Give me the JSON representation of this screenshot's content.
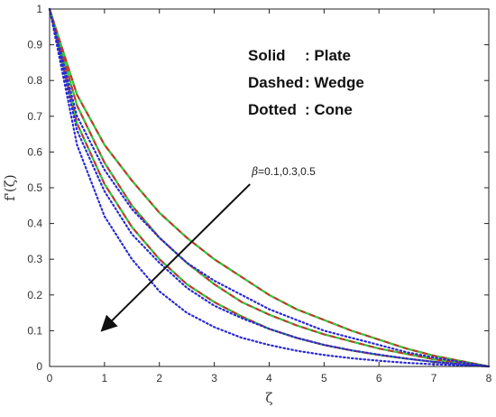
{
  "chart_data": {
    "type": "line",
    "xlabel": "ζ",
    "ylabel": "f'(ζ)",
    "xlim": [
      0,
      8
    ],
    "ylim": [
      0,
      1
    ],
    "xticks": [
      "0",
      "1",
      "2",
      "3",
      "4",
      "5",
      "6",
      "7",
      "8"
    ],
    "yticks": [
      "0",
      "0.1",
      "0.2",
      "0.3",
      "0.4",
      "0.5",
      "0.6",
      "0.7",
      "0.8",
      "0.9",
      "1"
    ],
    "grid": false,
    "legend_lines": [
      {
        "style": "Solid",
        "sep": ": ",
        "name": "Plate"
      },
      {
        "style": "Dashed",
        "sep": ": ",
        "name": "Wedge"
      },
      {
        "style": "Dotted",
        "sep": ": ",
        "name": "Cone"
      }
    ],
    "legend_position": "top-right",
    "annotation": {
      "symbol": "β",
      "text": "=0.1,0.3,0.5",
      "tail": [
        3.65,
        0.51
      ],
      "head": [
        0.95,
        0.1
      ]
    },
    "series_colors": {
      "plate": "#5a7d10",
      "wedge_dash": "#c0392b",
      "wedge_dash_alt": "#2ecc40",
      "cone": "#2a2ad4"
    },
    "series": [
      {
        "style": "solid",
        "beta": 0.1,
        "x": [
          0,
          0.5,
          1,
          1.5,
          2,
          2.5,
          3,
          3.5,
          4,
          4.5,
          5,
          5.5,
          6,
          6.5,
          7,
          7.5,
          8
        ],
        "y": [
          1,
          0.76,
          0.62,
          0.52,
          0.43,
          0.36,
          0.3,
          0.25,
          0.2,
          0.16,
          0.13,
          0.1,
          0.075,
          0.05,
          0.03,
          0.015,
          0
        ]
      },
      {
        "style": "solid",
        "beta": 0.3,
        "x": [
          0,
          0.5,
          1,
          1.5,
          2,
          2.5,
          3,
          3.5,
          4,
          4.5,
          5,
          5.5,
          6,
          6.5,
          7,
          7.5,
          8
        ],
        "y": [
          1,
          0.73,
          0.57,
          0.45,
          0.36,
          0.29,
          0.23,
          0.18,
          0.145,
          0.115,
          0.09,
          0.07,
          0.05,
          0.035,
          0.02,
          0.01,
          0
        ]
      },
      {
        "style": "solid",
        "beta": 0.5,
        "x": [
          0,
          0.5,
          1,
          1.5,
          2,
          2.5,
          3,
          3.5,
          4,
          4.5,
          5,
          5.5,
          6,
          6.5,
          7,
          7.5,
          8
        ],
        "y": [
          1,
          0.68,
          0.51,
          0.39,
          0.3,
          0.23,
          0.18,
          0.14,
          0.105,
          0.08,
          0.06,
          0.045,
          0.032,
          0.022,
          0.013,
          0.006,
          0
        ]
      },
      {
        "style": "dashed",
        "beta": 0.1,
        "x": [
          0,
          0.5,
          1,
          1.5,
          2,
          2.5,
          3,
          3.5,
          4,
          4.5,
          5,
          5.5,
          6,
          6.5,
          7,
          7.5,
          8
        ],
        "y": [
          1,
          0.76,
          0.62,
          0.52,
          0.43,
          0.36,
          0.3,
          0.25,
          0.2,
          0.16,
          0.13,
          0.1,
          0.075,
          0.05,
          0.03,
          0.015,
          0
        ]
      },
      {
        "style": "dashed",
        "beta": 0.3,
        "x": [
          0,
          0.5,
          1,
          1.5,
          2,
          2.5,
          3,
          3.5,
          4,
          4.5,
          5,
          5.5,
          6,
          6.5,
          7,
          7.5,
          8
        ],
        "y": [
          1,
          0.73,
          0.57,
          0.45,
          0.36,
          0.29,
          0.23,
          0.18,
          0.145,
          0.115,
          0.09,
          0.07,
          0.05,
          0.035,
          0.02,
          0.01,
          0
        ]
      },
      {
        "style": "dashed",
        "beta": 0.5,
        "x": [
          0,
          0.5,
          1,
          1.5,
          2,
          2.5,
          3,
          3.5,
          4,
          4.5,
          5,
          5.5,
          6,
          6.5,
          7,
          7.5,
          8
        ],
        "y": [
          1,
          0.68,
          0.51,
          0.39,
          0.3,
          0.23,
          0.18,
          0.14,
          0.105,
          0.08,
          0.06,
          0.045,
          0.032,
          0.022,
          0.013,
          0.006,
          0
        ]
      },
      {
        "style": "dotted",
        "beta": 0.1,
        "x": [
          0,
          0.5,
          1,
          1.5,
          2,
          2.5,
          3,
          3.5,
          4,
          4.5,
          5,
          5.5,
          6,
          6.5,
          7,
          7.5,
          8
        ],
        "y": [
          1,
          0.7,
          0.55,
          0.44,
          0.36,
          0.29,
          0.24,
          0.2,
          0.16,
          0.13,
          0.1,
          0.08,
          0.06,
          0.04,
          0.025,
          0.012,
          0
        ]
      },
      {
        "style": "dotted",
        "beta": 0.3,
        "x": [
          0,
          0.5,
          1,
          1.5,
          2,
          2.5,
          3,
          3.5,
          4,
          4.5,
          5,
          5.5,
          6,
          6.5,
          7,
          7.5,
          8
        ],
        "y": [
          1,
          0.66,
          0.49,
          0.37,
          0.29,
          0.22,
          0.17,
          0.135,
          0.105,
          0.08,
          0.06,
          0.045,
          0.033,
          0.022,
          0.013,
          0.006,
          0
        ]
      },
      {
        "style": "dotted",
        "beta": 0.5,
        "x": [
          0,
          0.5,
          1,
          1.5,
          2,
          2.5,
          3,
          3.5,
          4,
          4.5,
          5,
          5.5,
          6,
          6.5,
          7,
          7.5,
          8
        ],
        "y": [
          1,
          0.62,
          0.42,
          0.3,
          0.21,
          0.15,
          0.11,
          0.08,
          0.06,
          0.044,
          0.032,
          0.023,
          0.016,
          0.01,
          0.006,
          0.003,
          0
        ]
      }
    ]
  }
}
